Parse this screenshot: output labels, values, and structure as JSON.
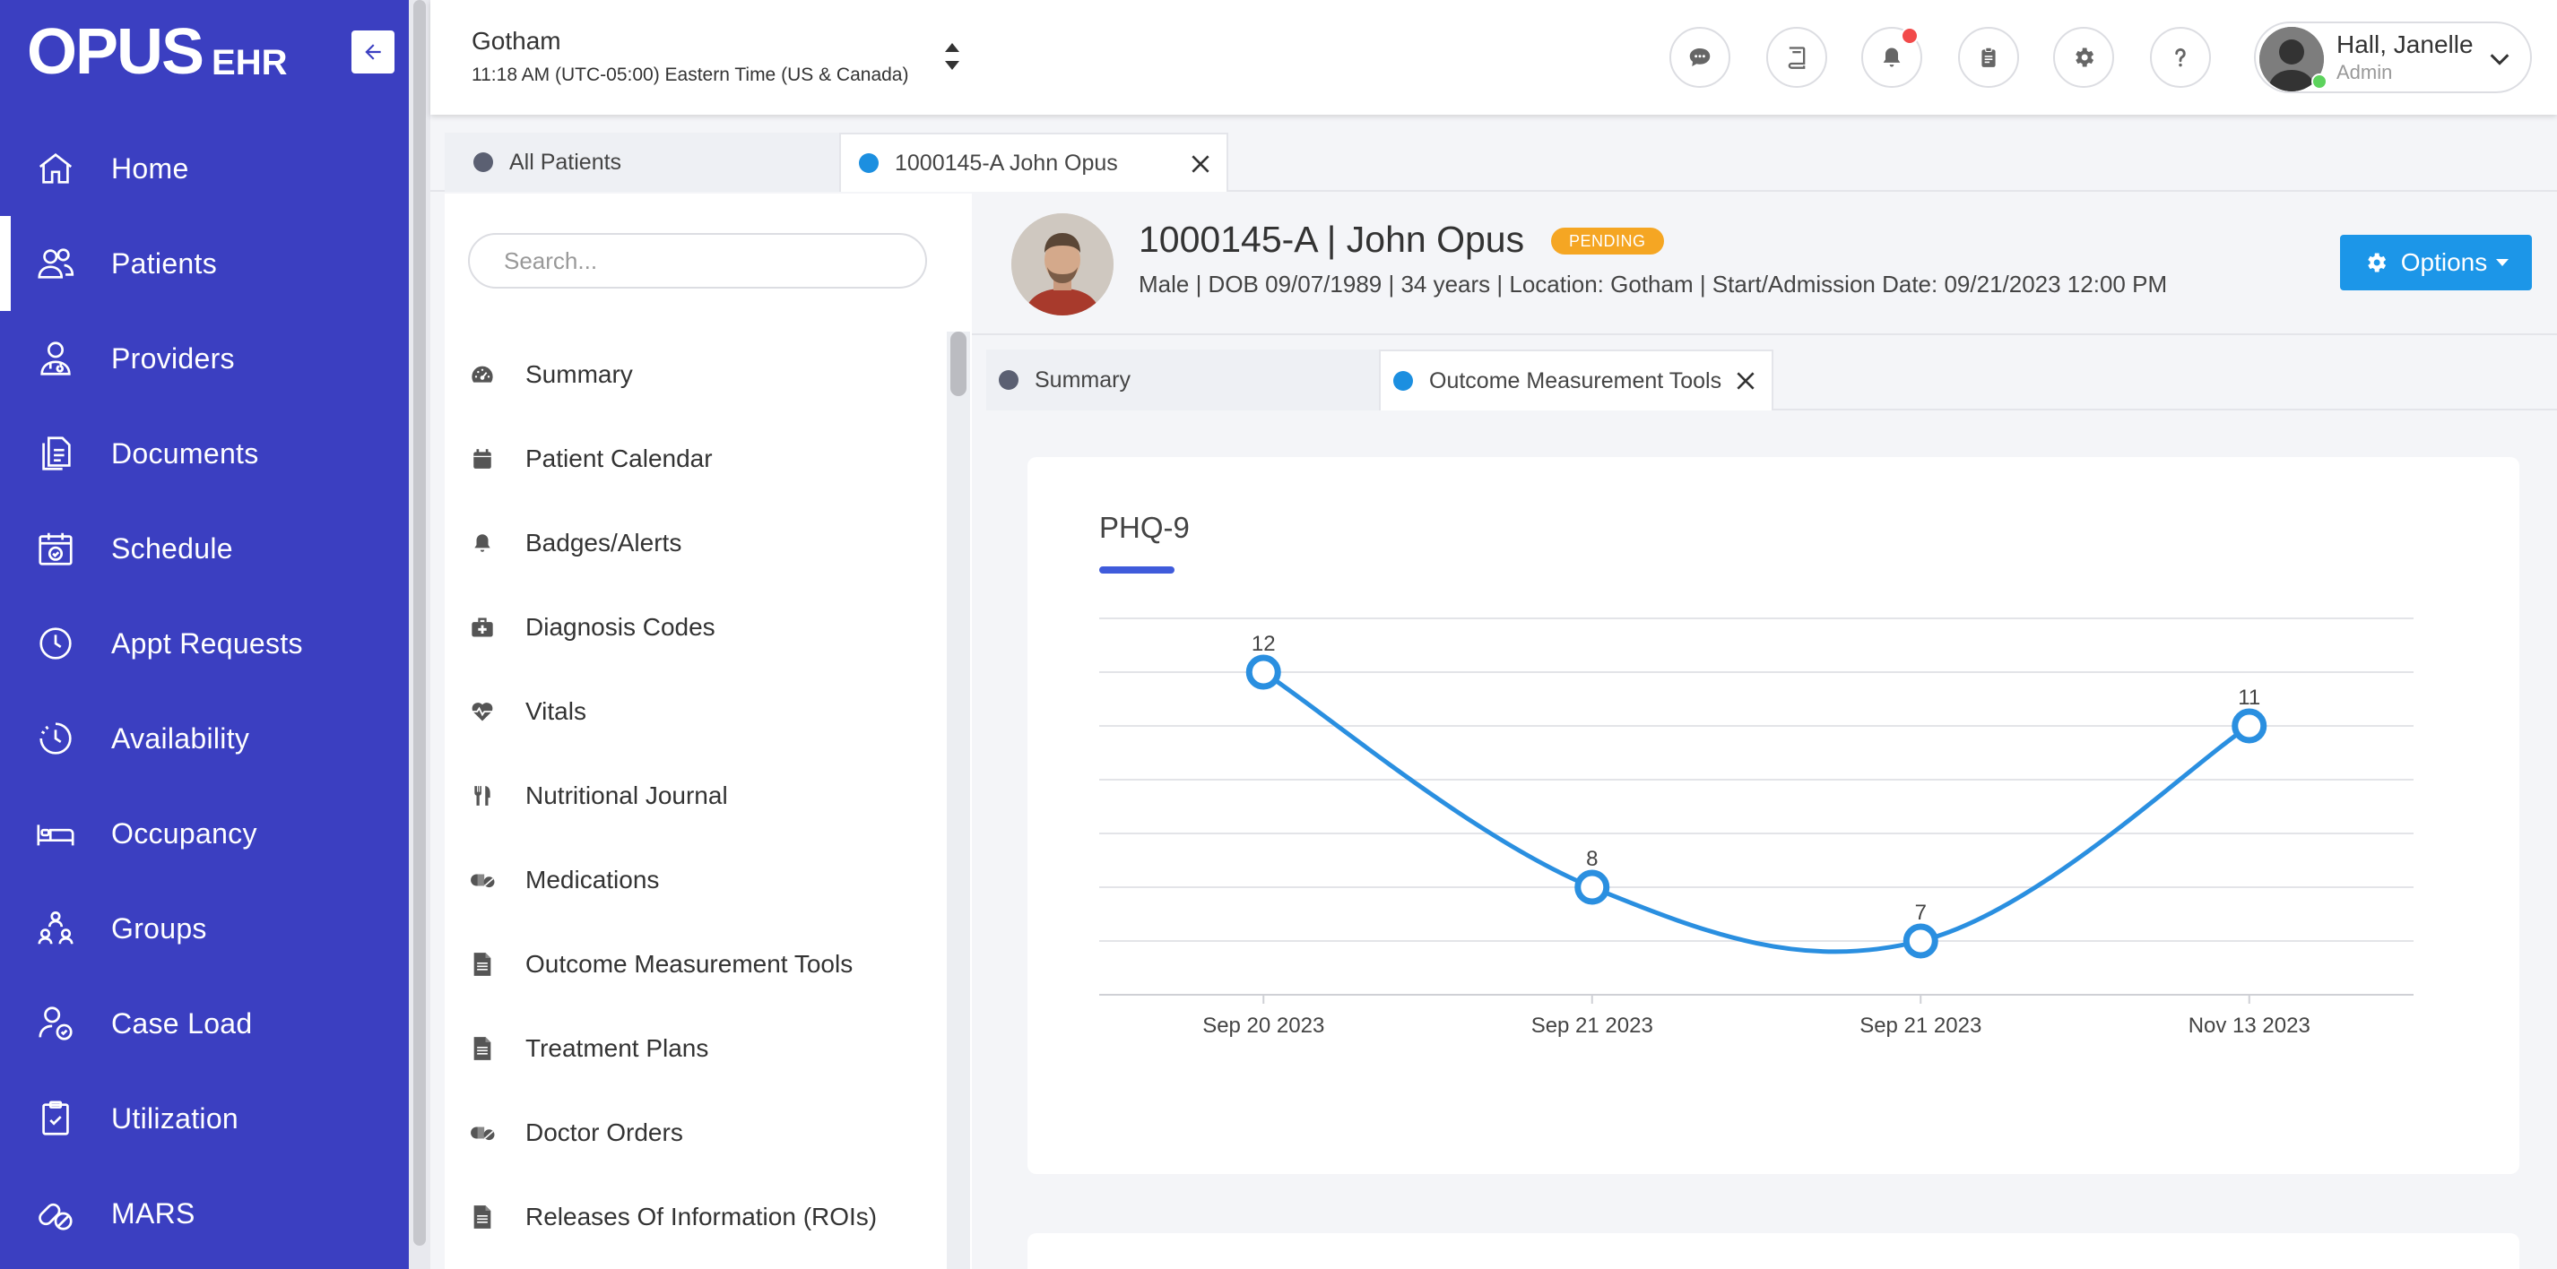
{
  "app": {
    "logo_main": "OPUS",
    "logo_sub": "EHR"
  },
  "sidebar": {
    "items": [
      {
        "label": "Home",
        "icon": "home-icon"
      },
      {
        "label": "Patients",
        "icon": "users-icon",
        "active": true
      },
      {
        "label": "Providers",
        "icon": "provider-icon"
      },
      {
        "label": "Documents",
        "icon": "documents-icon"
      },
      {
        "label": "Schedule",
        "icon": "calendar-check-icon"
      },
      {
        "label": "Appt Requests",
        "icon": "clock-icon"
      },
      {
        "label": "Availability",
        "icon": "availability-icon"
      },
      {
        "label": "Occupancy",
        "icon": "bed-icon"
      },
      {
        "label": "Groups",
        "icon": "groups-icon"
      },
      {
        "label": "Case Load",
        "icon": "case-load-icon"
      },
      {
        "label": "Utilization",
        "icon": "clipboard-check-icon"
      },
      {
        "label": "MARS",
        "icon": "pills-icon"
      }
    ]
  },
  "header": {
    "location": "Gotham",
    "time": "11:18 AM (UTC-05:00) Eastern Time (US & Canada)",
    "user_name": "Hall, Janelle",
    "user_role": "Admin"
  },
  "top_tabs": {
    "all_patients": "All Patients",
    "patient_tab": "1000145-A John Opus"
  },
  "patient_sidebar": {
    "search_placeholder": "Search...",
    "items": [
      {
        "label": "Summary",
        "icon": "dashboard-icon"
      },
      {
        "label": "Patient Calendar",
        "icon": "calendar-icon"
      },
      {
        "label": "Badges/Alerts",
        "icon": "bell-icon"
      },
      {
        "label": "Diagnosis Codes",
        "icon": "medkit-icon"
      },
      {
        "label": "Vitals",
        "icon": "heartbeat-icon"
      },
      {
        "label": "Nutritional Journal",
        "icon": "utensils-icon"
      },
      {
        "label": "Medications",
        "icon": "pills-icon"
      },
      {
        "label": "Outcome Measurement Tools",
        "icon": "file-icon"
      },
      {
        "label": "Treatment Plans",
        "icon": "file-icon"
      },
      {
        "label": "Doctor Orders",
        "icon": "pills-icon"
      },
      {
        "label": "Releases Of Information (ROIs)",
        "icon": "file-icon"
      }
    ]
  },
  "patient": {
    "id_name": "1000145-A | John Opus",
    "status": "PENDING",
    "info": "Male   |   DOB 09/07/1989   |   34 years   |   Location: Gotham   |   Start/Admission Date: 09/21/2023 12:00 PM",
    "options_label": "Options"
  },
  "sub_tabs": {
    "summary": "Summary",
    "outcome": "Outcome Measurement Tools"
  },
  "colors": {
    "sidebar_bg": "#3b3fc1",
    "accent_blue": "#1c96e8",
    "line_color": "#2a8fe0",
    "pending": "#f5a623",
    "tab_dot_gray": "#5b6072",
    "tab_dot_blue": "#1c8fe0"
  },
  "chart_data": {
    "type": "line",
    "title": "PHQ-9",
    "categories": [
      "Sep 20 2023",
      "Sep 21 2023",
      "Sep 21 2023",
      "Nov 13 2023"
    ],
    "values": [
      12,
      8,
      7,
      11
    ],
    "data_labels": [
      "12",
      "8",
      "7",
      "11"
    ],
    "xlabel": "",
    "ylabel": "",
    "ylim": [
      6,
      13
    ],
    "grid": true,
    "smooth": true,
    "legend": "none"
  }
}
